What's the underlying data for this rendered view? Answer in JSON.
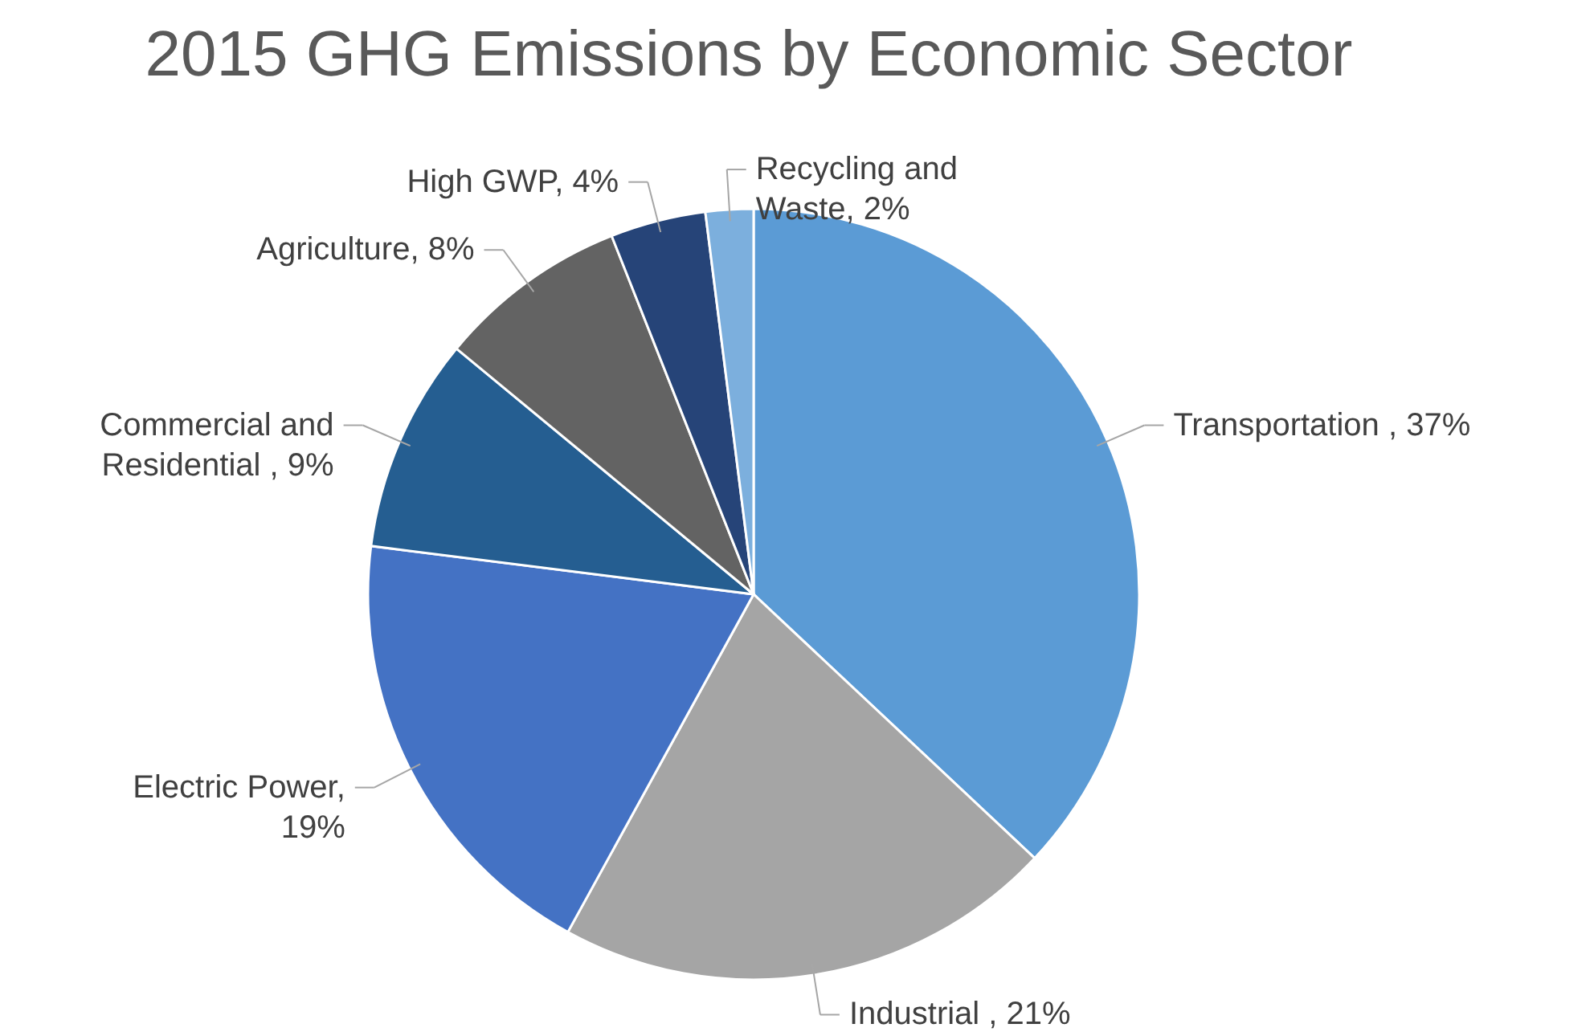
{
  "chart_data": {
    "type": "pie",
    "title": "2015 GHG Emissions by Economic Sector",
    "categories": [
      "Transportation , 37%",
      "Industrial , 21%",
      "Electric Power,\n19%",
      "Commercial and\nResidential , 9%",
      "Agriculture, 8%",
      "High GWP, 4%",
      "Recycling and\nWaste, 2%"
    ],
    "values": [
      37,
      21,
      19,
      9,
      8,
      4,
      2
    ],
    "colors": [
      "#5b9bd5",
      "#a5a5a5",
      "#4472c4",
      "#255e91",
      "#636363",
      "#264478",
      "#7cafdd"
    ]
  }
}
